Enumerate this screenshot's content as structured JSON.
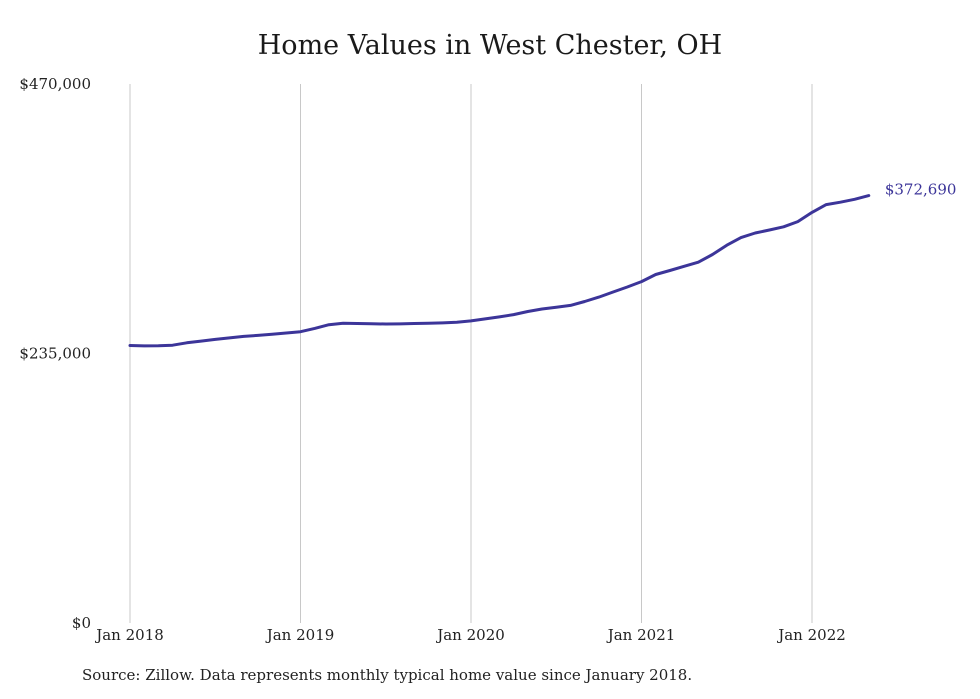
{
  "chart_data": {
    "type": "line",
    "title": "Home Values in West Chester, OH",
    "xlabel": "",
    "ylabel": "",
    "ylim": [
      0,
      470000
    ],
    "y_ticks": [
      {
        "value": 0,
        "label": "$0"
      },
      {
        "value": 235000,
        "label": "$235,000"
      },
      {
        "value": 470000,
        "label": "$470,000"
      }
    ],
    "x_ticks": [
      {
        "value": "2018-01",
        "label": "Jan 2018"
      },
      {
        "value": "2019-01",
        "label": "Jan 2019"
      },
      {
        "value": "2020-01",
        "label": "Jan 2020"
      },
      {
        "value": "2021-01",
        "label": "Jan 2021"
      },
      {
        "value": "2022-01",
        "label": "Jan 2022"
      }
    ],
    "grid": "vertical",
    "series_color": "#3c3599",
    "series": [
      {
        "x": [
          "2018-01",
          "2018-02",
          "2018-03",
          "2018-04",
          "2018-05",
          "2018-06",
          "2018-07",
          "2018-08",
          "2018-09",
          "2018-10",
          "2018-11",
          "2018-12",
          "2019-01",
          "2019-02",
          "2019-03",
          "2019-04",
          "2019-05",
          "2019-06",
          "2019-07",
          "2019-08",
          "2019-09",
          "2019-10",
          "2019-11",
          "2019-12",
          "2020-01",
          "2020-02",
          "2020-03",
          "2020-04",
          "2020-05",
          "2020-06",
          "2020-07",
          "2020-08",
          "2020-09",
          "2020-10",
          "2020-11",
          "2020-12",
          "2021-01",
          "2021-02",
          "2021-03",
          "2021-04",
          "2021-05",
          "2021-06",
          "2021-07",
          "2021-08",
          "2021-09",
          "2021-10",
          "2021-11",
          "2021-12",
          "2022-01",
          "2022-02",
          "2022-03",
          "2022-04",
          "2022-05"
        ],
        "values": [
          242000,
          241600,
          241700,
          242200,
          244300,
          245800,
          247300,
          248600,
          249900,
          250800,
          251800,
          252900,
          254000,
          256900,
          260100,
          261400,
          261200,
          260900,
          260700,
          260800,
          261200,
          261300,
          261700,
          262300,
          263400,
          265200,
          266900,
          268900,
          271600,
          273800,
          275300,
          276900,
          280300,
          284200,
          288600,
          293000,
          297700,
          303900,
          307400,
          311000,
          314600,
          321300,
          329400,
          336100,
          340100,
          342700,
          345500,
          350000,
          358000,
          364800,
          366900,
          369500,
          372690
        ]
      }
    ],
    "end_label": "$372,690",
    "source_note": "Source: Zillow. Data represents monthly typical home value since January 2018."
  }
}
